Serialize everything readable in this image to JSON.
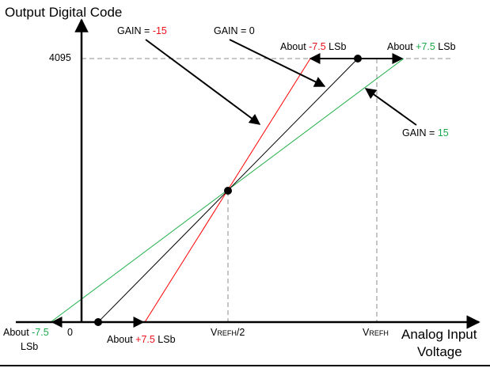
{
  "labels": {
    "y_axis_title": "Output Digital Code",
    "x_axis_title_line1": "Analog Input",
    "x_axis_title_line2": "Voltage",
    "y_tick_4095": "4095",
    "x_tick_zero": "0",
    "x_tick_vrefh_half_v": "V",
    "x_tick_vrefh_half_sub": "REFH",
    "x_tick_vrefh_half_tail": "/2",
    "x_tick_vrefh_v": "V",
    "x_tick_vrefh_sub": "REFH"
  },
  "gain_labels": {
    "neg": {
      "prefix": "GAIN = ",
      "value": "-15"
    },
    "zero": {
      "text": "GAIN = 0"
    },
    "pos": {
      "prefix": "GAIN = ",
      "value": "15"
    }
  },
  "offset_labels": {
    "top_left": {
      "prefix": "About ",
      "value": "-7.5",
      "suffix": " LSb"
    },
    "top_right": {
      "prefix": "About ",
      "value": "+7.5",
      "suffix": " LSb"
    },
    "bottom_left": {
      "prefix": "About ",
      "value": "-7.5",
      "line2": "LSb"
    },
    "bottom_right": {
      "prefix": "About ",
      "value": "+7.5",
      "suffix": " LSb"
    }
  },
  "colors": {
    "gain_neg_line": "#ff0000",
    "gain_zero_line": "#000000",
    "gain_pos_line": "#22b04b",
    "negative_text": "#e8101a",
    "positive_text": "#19a84b",
    "guide_dash": "#8c8c8c"
  }
}
